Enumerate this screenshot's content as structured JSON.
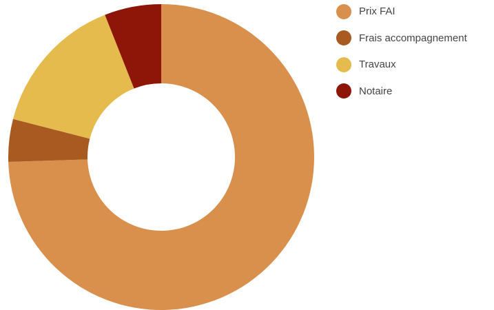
{
  "chart_data": {
    "type": "pie",
    "variant": "donut",
    "title": "",
    "legend_position": "right",
    "categories": [
      "Prix FAI",
      "Frais accompagnement",
      "Travaux",
      "Notaire"
    ],
    "values": [
      74.5,
      4.5,
      15.0,
      6.0
    ],
    "colors": [
      "#d9904c",
      "#a85a20",
      "#e5bb4e",
      "#8e1609"
    ]
  }
}
